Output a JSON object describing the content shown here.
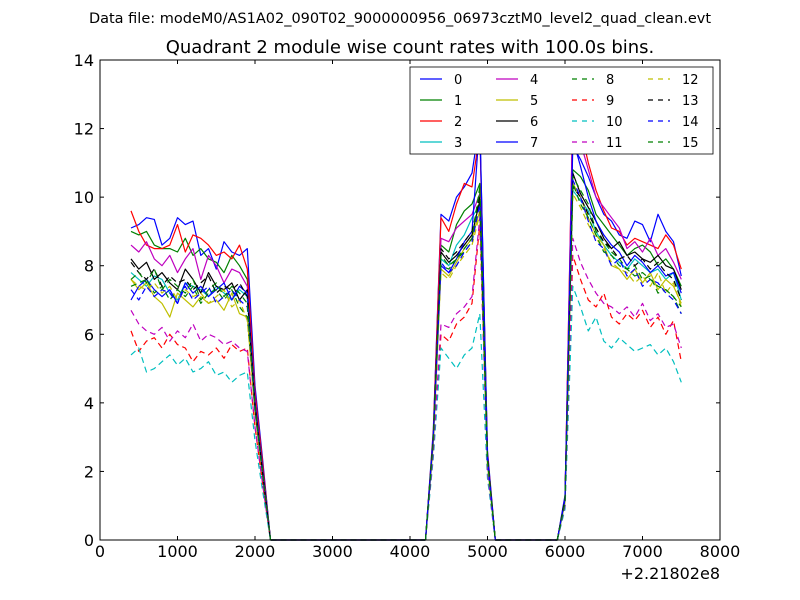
{
  "suptitle": "Data file: modeM0/AS1A02_090T02_9000000956_06973cztM0_level2_quad_clean.evt",
  "chart_data": {
    "type": "line",
    "title": "Quadrant 2 module wise count rates with 100.0s bins.",
    "xlabel": "",
    "ylabel": "",
    "x_offset_label": "+2.21802e8",
    "xlim": [
      0,
      8000
    ],
    "ylim": [
      0,
      14
    ],
    "xticks": [
      0,
      1000,
      2000,
      3000,
      4000,
      5000,
      6000,
      7000,
      8000
    ],
    "yticks": [
      0,
      2,
      4,
      6,
      8,
      10,
      12,
      14
    ],
    "grid": false,
    "legend_position": "upper-right",
    "legend_columns": 4,
    "x_groups": [
      [
        400,
        500,
        600,
        700,
        800,
        900,
        1000,
        1100,
        1200,
        1300,
        1400,
        1500,
        1600,
        1700,
        1800,
        1900,
        2000,
        2100,
        2200
      ],
      [
        2200,
        4200
      ],
      [
        4200,
        4300,
        4400,
        4500,
        4600,
        4700,
        4800,
        4900,
        5000,
        5100
      ],
      [
        5100,
        5900
      ],
      [
        5900,
        6000,
        6100,
        6200,
        6300,
        6400,
        6500,
        6600,
        6700,
        6800,
        6900,
        7000,
        7100,
        7200,
        7300,
        7400,
        7500
      ]
    ],
    "series": [
      {
        "name": "0",
        "color": "#0000ff",
        "dash": "solid",
        "segments": [
          [
            9.1,
            9.2,
            9.4,
            9.35,
            8.6,
            8.8,
            9.4,
            9.2,
            9.3,
            8.3,
            8.5,
            7.9,
            8.7,
            8.4,
            8.3,
            8.5,
            4.5,
            2.3,
            0
          ],
          [
            0,
            0
          ],
          [
            0,
            3.2,
            9.5,
            9.3,
            10.0,
            10.3,
            10.7,
            12.2,
            2.6,
            0
          ],
          [
            0,
            0
          ],
          [
            0,
            1.3,
            11.5,
            11.1,
            10.6,
            10.0,
            9.5,
            9.3,
            8.9,
            8.8,
            9.3,
            9.2,
            8.7,
            9.5,
            9.0,
            8.7,
            7.7
          ]
        ]
      },
      {
        "name": "1",
        "color": "#008000",
        "dash": "solid",
        "segments": [
          [
            9.0,
            8.9,
            9.0,
            8.6,
            8.5,
            8.5,
            8.4,
            8.8,
            8.3,
            8.5,
            8.2,
            8.1,
            7.8,
            8.3,
            8.0,
            7.6,
            4.2,
            2.1,
            0
          ],
          [
            0,
            0
          ],
          [
            0,
            3.0,
            8.6,
            8.4,
            9.2,
            9.6,
            9.8,
            10.4,
            2.4,
            0
          ],
          [
            0,
            0
          ],
          [
            0,
            1.2,
            10.8,
            10.6,
            10.2,
            9.5,
            9.2,
            8.9,
            8.6,
            8.3,
            8.5,
            8.6,
            8.4,
            8.0,
            8.2,
            7.9,
            7.4
          ]
        ]
      },
      {
        "name": "2",
        "color": "#ff0000",
        "dash": "solid",
        "segments": [
          [
            9.6,
            9.0,
            8.6,
            8.5,
            8.5,
            8.6,
            9.2,
            8.4,
            8.9,
            8.8,
            8.6,
            8.3,
            8.4,
            8.2,
            8.6,
            7.9,
            4.3,
            2.2,
            0
          ],
          [
            0,
            0
          ],
          [
            0,
            3.1,
            9.4,
            9.0,
            9.8,
            10.4,
            10.3,
            11.9,
            2.5,
            0
          ],
          [
            0,
            0
          ],
          [
            0,
            1.2,
            12.6,
            12.0,
            11.0,
            10.2,
            9.6,
            9.1,
            9.0,
            8.6,
            8.8,
            8.7,
            8.6,
            8.5,
            8.9,
            8.6,
            7.9
          ]
        ]
      },
      {
        "name": "3",
        "color": "#00bfbf",
        "dash": "solid",
        "segments": [
          [
            7.8,
            7.6,
            7.4,
            7.7,
            7.6,
            7.2,
            7.0,
            7.5,
            7.4,
            7.3,
            7.1,
            7.4,
            7.2,
            7.0,
            7.3,
            7.1,
            3.9,
            1.9,
            0
          ],
          [
            0,
            0
          ],
          [
            0,
            2.9,
            8.2,
            8.0,
            8.6,
            8.9,
            9.4,
            9.8,
            2.3,
            0
          ],
          [
            0,
            0
          ],
          [
            0,
            1.1,
            10.2,
            9.9,
            9.6,
            9.0,
            8.6,
            8.3,
            8.1,
            7.9,
            8.2,
            8.0,
            7.8,
            7.9,
            7.6,
            7.8,
            7.0
          ]
        ]
      },
      {
        "name": "4",
        "color": "#bf00bf",
        "dash": "solid",
        "segments": [
          [
            8.6,
            8.4,
            8.7,
            8.2,
            8.0,
            8.3,
            7.8,
            8.2,
            8.5,
            7.6,
            8.3,
            8.0,
            7.5,
            7.9,
            7.8,
            7.4,
            4.1,
            2.0,
            0
          ],
          [
            0,
            0
          ],
          [
            0,
            3.0,
            8.8,
            8.7,
            9.1,
            9.3,
            9.5,
            10.1,
            2.4,
            0
          ],
          [
            0,
            0
          ],
          [
            0,
            1.2,
            12.5,
            11.6,
            10.8,
            10.0,
            9.7,
            9.4,
            9.1,
            8.5,
            8.7,
            8.4,
            8.8,
            8.3,
            8.5,
            8.1,
            7.6
          ]
        ]
      },
      {
        "name": "5",
        "color": "#bfbf00",
        "dash": "solid",
        "segments": [
          [
            7.6,
            7.3,
            7.5,
            7.1,
            6.9,
            6.5,
            7.2,
            7.0,
            6.8,
            7.1,
            6.9,
            7.0,
            6.7,
            7.2,
            6.6,
            6.5,
            3.7,
            1.8,
            0
          ],
          [
            0,
            0
          ],
          [
            0,
            2.8,
            7.9,
            7.7,
            8.1,
            8.5,
            8.8,
            9.6,
            2.2,
            0
          ],
          [
            0,
            0
          ],
          [
            0,
            1.1,
            10.4,
            10.0,
            9.4,
            8.9,
            8.6,
            8.0,
            7.9,
            7.6,
            7.9,
            7.5,
            7.8,
            7.3,
            7.6,
            7.4,
            6.9
          ]
        ]
      },
      {
        "name": "6",
        "color": "#000000",
        "dash": "solid",
        "segments": [
          [
            8.2,
            7.9,
            8.1,
            7.6,
            7.8,
            7.5,
            7.3,
            7.9,
            7.6,
            7.2,
            7.8,
            7.4,
            7.3,
            7.5,
            7.0,
            7.3,
            4.0,
            2.0,
            0
          ],
          [
            0,
            0
          ],
          [
            0,
            3.0,
            8.4,
            8.1,
            8.3,
            8.6,
            8.9,
            9.9,
            2.4,
            0
          ],
          [
            0,
            0
          ],
          [
            0,
            1.2,
            10.7,
            10.1,
            9.7,
            9.3,
            8.8,
            8.5,
            8.7,
            8.3,
            8.4,
            8.2,
            8.1,
            8.3,
            8.0,
            7.9,
            7.3
          ]
        ]
      },
      {
        "name": "7",
        "color": "#0000ff",
        "dash": "solid",
        "segments": [
          [
            7.0,
            7.4,
            7.6,
            7.3,
            7.1,
            7.3,
            6.9,
            7.5,
            7.2,
            7.4,
            7.1,
            7.3,
            7.5,
            7.0,
            7.4,
            7.2,
            4.0,
            2.0,
            0
          ],
          [
            0,
            0
          ],
          [
            0,
            3.0,
            8.0,
            7.8,
            8.2,
            8.7,
            9.0,
            12.2,
            2.4,
            0
          ],
          [
            0,
            0
          ],
          [
            0,
            1.2,
            11.7,
            10.9,
            10.0,
            9.3,
            8.9,
            8.6,
            8.4,
            8.0,
            8.3,
            8.1,
            7.8,
            8.0,
            7.7,
            7.8,
            7.2
          ]
        ]
      },
      {
        "name": "8",
        "color": "#008000",
        "dash": "dashed",
        "segments": [
          [
            7.4,
            7.5,
            7.6,
            7.2,
            7.4,
            7.0,
            7.3,
            7.1,
            7.4,
            6.9,
            7.2,
            7.3,
            7.0,
            7.3,
            6.8,
            6.5,
            3.8,
            1.9,
            0
          ],
          [
            0,
            0
          ],
          [
            0,
            2.9,
            8.0,
            7.9,
            8.2,
            8.4,
            8.7,
            10.2,
            2.3,
            0
          ],
          [
            0,
            0
          ],
          [
            0,
            1.1,
            10.6,
            10.2,
            9.8,
            9.0,
            8.7,
            8.4,
            8.2,
            7.9,
            8.0,
            7.6,
            7.7,
            7.2,
            7.3,
            7.1,
            6.6
          ]
        ]
      },
      {
        "name": "9",
        "color": "#ff0000",
        "dash": "dashed",
        "segments": [
          [
            6.1,
            5.5,
            5.8,
            5.9,
            5.6,
            6.0,
            5.7,
            5.6,
            5.2,
            5.5,
            5.4,
            5.6,
            5.3,
            5.7,
            5.5,
            5.6,
            3.3,
            1.6,
            0
          ],
          [
            0,
            0
          ],
          [
            0,
            2.6,
            6.0,
            5.8,
            6.3,
            6.5,
            6.9,
            9.2,
            2.0,
            0
          ],
          [
            0,
            0
          ],
          [
            0,
            1.0,
            8.3,
            7.6,
            7.0,
            6.8,
            7.2,
            6.5,
            6.3,
            6.6,
            6.4,
            6.7,
            6.2,
            6.5,
            6.0,
            6.4,
            5.2
          ]
        ]
      },
      {
        "name": "10",
        "color": "#00bfbf",
        "dash": "dashed",
        "segments": [
          [
            5.4,
            5.6,
            4.9,
            5.0,
            5.2,
            5.4,
            5.1,
            5.3,
            4.9,
            5.0,
            5.2,
            4.8,
            4.9,
            4.6,
            4.8,
            4.9,
            2.9,
            1.4,
            0
          ],
          [
            0,
            0
          ],
          [
            0,
            2.4,
            5.6,
            5.3,
            5.0,
            5.4,
            5.6,
            6.6,
            1.8,
            0
          ],
          [
            0,
            0
          ],
          [
            0,
            0.9,
            7.4,
            6.8,
            6.1,
            6.5,
            5.8,
            5.6,
            5.9,
            5.7,
            5.5,
            5.6,
            5.7,
            5.4,
            5.6,
            5.2,
            4.6
          ]
        ]
      },
      {
        "name": "11",
        "color": "#bf00bf",
        "dash": "dashed",
        "segments": [
          [
            6.7,
            6.3,
            6.1,
            6.0,
            6.2,
            5.8,
            6.1,
            5.9,
            6.3,
            5.8,
            6.0,
            5.9,
            5.7,
            5.8,
            5.6,
            5.5,
            3.3,
            1.6,
            0
          ],
          [
            0,
            0
          ],
          [
            0,
            2.6,
            6.3,
            6.2,
            6.6,
            6.8,
            7.1,
            9.4,
            2.0,
            0
          ],
          [
            0,
            0
          ],
          [
            0,
            1.0,
            8.8,
            8.1,
            7.6,
            7.2,
            6.9,
            6.8,
            6.6,
            6.8,
            6.5,
            6.9,
            6.4,
            6.6,
            6.2,
            6.3,
            5.6
          ]
        ]
      },
      {
        "name": "12",
        "color": "#bfbf00",
        "dash": "dashed",
        "segments": [
          [
            7.6,
            7.4,
            7.3,
            7.5,
            7.2,
            7.4,
            7.0,
            7.3,
            7.1,
            7.2,
            6.9,
            7.1,
            7.3,
            6.8,
            7.0,
            6.4,
            3.8,
            1.9,
            0
          ],
          [
            0,
            0
          ],
          [
            0,
            2.9,
            7.8,
            7.6,
            8.0,
            8.3,
            8.6,
            9.5,
            2.2,
            0
          ],
          [
            0,
            0
          ],
          [
            0,
            1.1,
            10.1,
            9.7,
            9.2,
            8.8,
            8.5,
            8.1,
            7.9,
            7.8,
            7.5,
            7.7,
            7.4,
            7.8,
            7.2,
            7.5,
            6.8
          ]
        ]
      },
      {
        "name": "13",
        "color": "#000000",
        "dash": "dashed",
        "segments": [
          [
            8.1,
            7.8,
            7.6,
            7.9,
            7.4,
            7.7,
            7.5,
            7.6,
            7.3,
            7.5,
            7.7,
            7.2,
            7.4,
            7.3,
            7.5,
            7.1,
            3.9,
            1.9,
            0
          ],
          [
            0,
            0
          ],
          [
            0,
            3.0,
            8.5,
            8.2,
            8.4,
            8.7,
            9.0,
            10.0,
            2.4,
            0
          ],
          [
            0,
            0
          ],
          [
            0,
            1.2,
            10.3,
            10.0,
            9.5,
            9.1,
            8.7,
            8.5,
            8.2,
            8.3,
            8.0,
            8.2,
            7.9,
            8.1,
            7.8,
            7.6,
            7.0
          ]
        ]
      },
      {
        "name": "14",
        "color": "#0000ff",
        "dash": "dashed",
        "segments": [
          [
            7.3,
            7.0,
            7.4,
            7.1,
            7.3,
            7.2,
            6.9,
            7.4,
            7.0,
            7.2,
            7.4,
            6.9,
            7.1,
            7.3,
            7.0,
            6.8,
            3.8,
            1.9,
            0
          ],
          [
            0,
            0
          ],
          [
            0,
            2.9,
            8.1,
            7.8,
            8.0,
            8.4,
            8.7,
            9.8,
            2.3,
            0
          ],
          [
            0,
            0
          ],
          [
            0,
            1.1,
            10.5,
            10.0,
            9.3,
            8.7,
            8.5,
            8.0,
            8.2,
            7.7,
            7.9,
            7.4,
            7.6,
            7.5,
            7.2,
            7.0,
            6.6
          ]
        ]
      },
      {
        "name": "15",
        "color": "#008000",
        "dash": "dashed",
        "segments": [
          [
            7.6,
            7.8,
            7.5,
            7.9,
            7.3,
            7.6,
            7.4,
            7.2,
            7.6,
            7.0,
            7.3,
            7.5,
            7.1,
            7.4,
            7.2,
            6.9,
            3.9,
            1.9,
            0
          ],
          [
            0,
            0
          ],
          [
            0,
            2.9,
            8.3,
            8.0,
            8.2,
            8.5,
            8.8,
            10.3,
            2.3,
            0
          ],
          [
            0,
            0
          ],
          [
            0,
            1.1,
            10.4,
            9.8,
            9.4,
            8.9,
            8.4,
            8.3,
            8.0,
            7.9,
            7.7,
            7.8,
            7.6,
            7.4,
            7.3,
            7.1,
            6.8
          ]
        ]
      }
    ]
  }
}
